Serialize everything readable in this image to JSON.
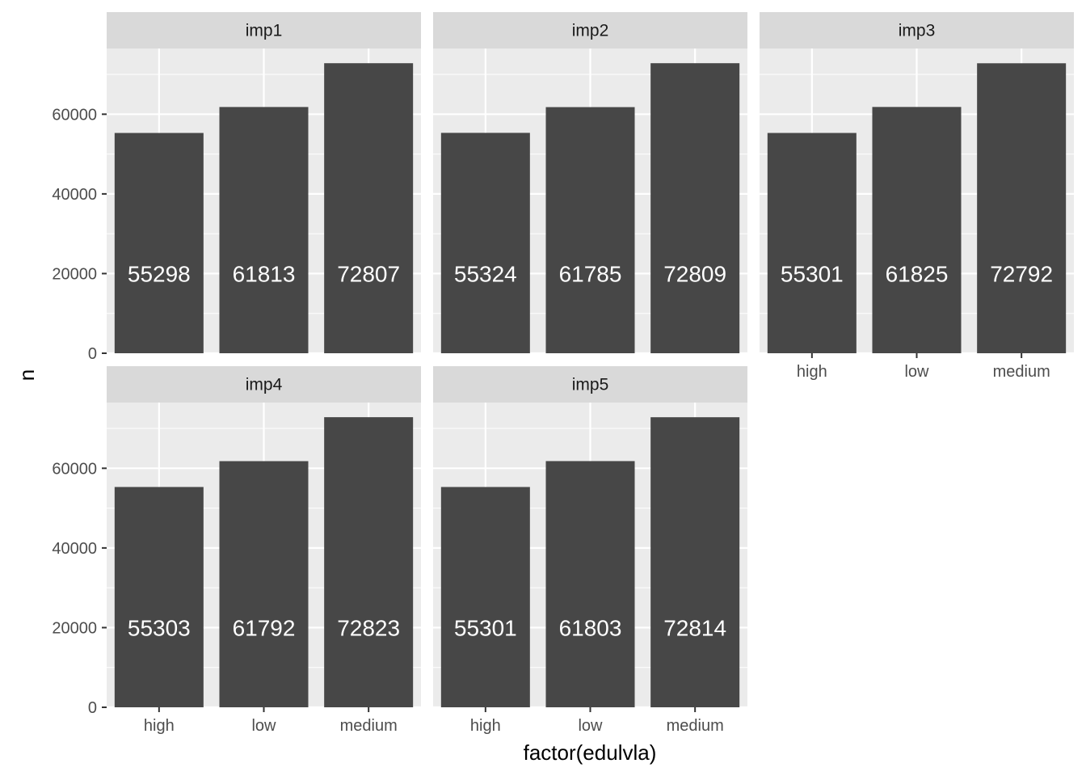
{
  "chart_data": {
    "type": "bar",
    "faceted": true,
    "xlabel": "factor(edulvla)",
    "ylabel": "n",
    "categories": [
      "high",
      "low",
      "medium"
    ],
    "y_ticks": [
      0,
      20000,
      40000,
      60000
    ],
    "ylim": [
      0,
      76500
    ],
    "grid": true,
    "label_y": 20000,
    "colors": {
      "bar": "#474747",
      "panel": "#ebebeb",
      "strip": "#d9d9d9",
      "grid": "#ffffff",
      "bar_label": "#ffffff"
    },
    "panels": [
      {
        "name": "imp1",
        "values": [
          55298,
          61813,
          72807
        ],
        "labels": [
          "55298",
          "61813",
          "72807"
        ]
      },
      {
        "name": "imp2",
        "values": [
          55324,
          61785,
          72809
        ],
        "labels": [
          "55324",
          "61785",
          "72809"
        ]
      },
      {
        "name": "imp3",
        "values": [
          55301,
          61825,
          72792
        ],
        "labels": [
          "55301",
          "61825",
          "72792"
        ]
      },
      {
        "name": "imp4",
        "values": [
          55303,
          61792,
          72823
        ],
        "labels": [
          "55303",
          "61792",
          "72823"
        ]
      },
      {
        "name": "imp5",
        "values": [
          55301,
          61803,
          72814
        ],
        "labels": [
          "55301",
          "61803",
          "72814"
        ]
      }
    ]
  }
}
